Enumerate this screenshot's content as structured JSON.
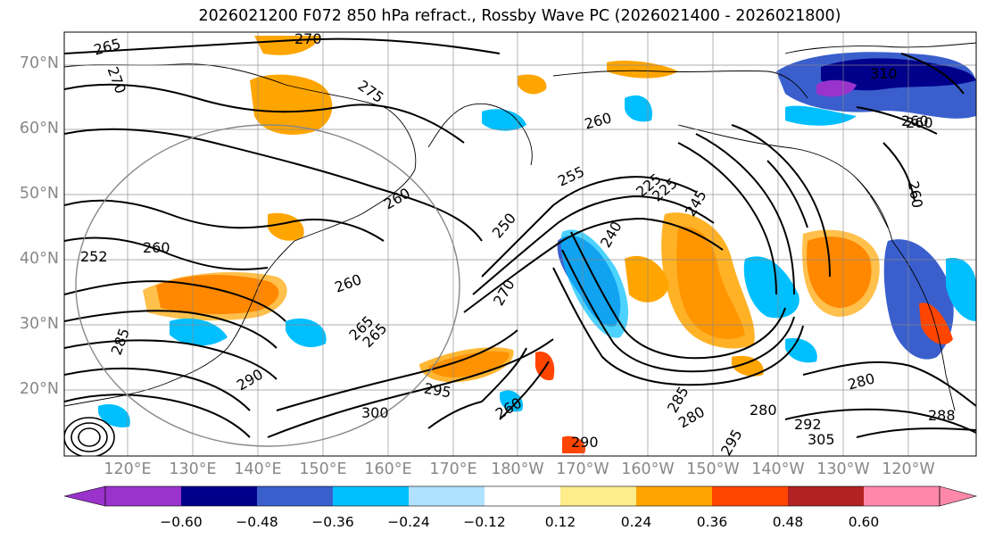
{
  "title": "2026021200 F072 850 hPa refract., Rossby Wave PC (2026021400 - 2026021800)",
  "latitude_labels": [
    "70°N",
    "60°N",
    "50°N",
    "40°N",
    "30°N",
    "20°N"
  ],
  "longitude_labels": [
    "120°E",
    "130°E",
    "140°E",
    "150°E",
    "160°E",
    "170°E",
    "180°W",
    "170°W",
    "160°W",
    "150°W",
    "140°W",
    "130°W",
    "120°W"
  ],
  "contour_labels": [
    "265",
    "270",
    "270",
    "275",
    "260",
    "260",
    "255",
    "250",
    "260",
    "265",
    "260",
    "252",
    "260",
    "245",
    "225",
    "225",
    "240",
    "270",
    "290",
    "300",
    "295",
    "285",
    "260",
    "285",
    "280",
    "280",
    "292",
    "305",
    "290",
    "295",
    "310",
    "260",
    "260",
    "265",
    "280",
    "288"
  ],
  "colorbar": {
    "ticks": [
      "−0.60",
      "−0.48",
      "−0.36",
      "−0.24",
      "−0.12",
      "0.12",
      "0.24",
      "0.36",
      "0.48",
      "0.60"
    ],
    "colors": [
      "#9933cc",
      "#00008b",
      "#3a5fcd",
      "#00bfff",
      "#b0e2ff",
      "#ffffff",
      "#ffec8b",
      "#ffa500",
      "#ff4500",
      "#b22222",
      "#ff88aa"
    ]
  },
  "colors": {
    "contour": "#000000",
    "grid": "#888888",
    "coast": "#000000",
    "circle": "#888888"
  }
}
